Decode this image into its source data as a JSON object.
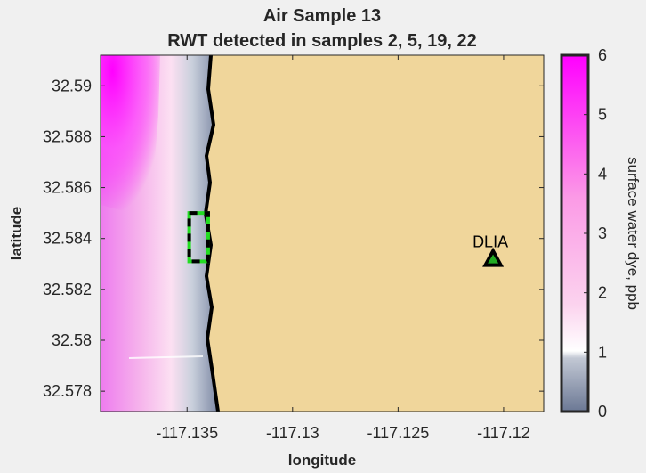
{
  "chart_data": {
    "type": "heatmap",
    "title_line1": "Air Sample 13",
    "title_line2": "RWT detected in samples 2, 5, 19, 22",
    "xlabel": "longitude",
    "ylabel": "latitude",
    "xlim": [
      -117.1391,
      -117.1181
    ],
    "ylim": [
      32.5772,
      32.5912
    ],
    "xticks": [
      -117.135,
      -117.13,
      -117.125,
      -117.12
    ],
    "xtick_labels": [
      "-117.135",
      "-117.13",
      "-117.125",
      "-117.12"
    ],
    "yticks": [
      32.578,
      32.58,
      32.582,
      32.584,
      32.586,
      32.588,
      32.59
    ],
    "ytick_labels": [
      "32.578",
      "32.58",
      "32.582",
      "32.584",
      "32.586",
      "32.588",
      "32.59"
    ],
    "colorbar": {
      "label": "surface water dye, ppb",
      "range": [
        0,
        6
      ],
      "ticks": [
        0,
        1,
        2,
        3,
        4,
        5,
        6
      ],
      "tick_labels": [
        "0",
        "1",
        "2",
        "3",
        "4",
        "5",
        "6"
      ]
    },
    "colors": {
      "land": "#f0d69b",
      "dye_high": "#ff00ff",
      "dye_low": "#6b7894",
      "shoreline": "#000000",
      "sample_box": "#22dd22",
      "marker": "#22aa22"
    },
    "sample_box": {
      "lon": [
        -117.1349,
        -117.134
      ],
      "lat": [
        32.5831,
        32.585
      ]
    },
    "annotations": [
      {
        "label": "DLIA",
        "lon": -117.1205,
        "lat": 32.5832
      }
    ]
  }
}
